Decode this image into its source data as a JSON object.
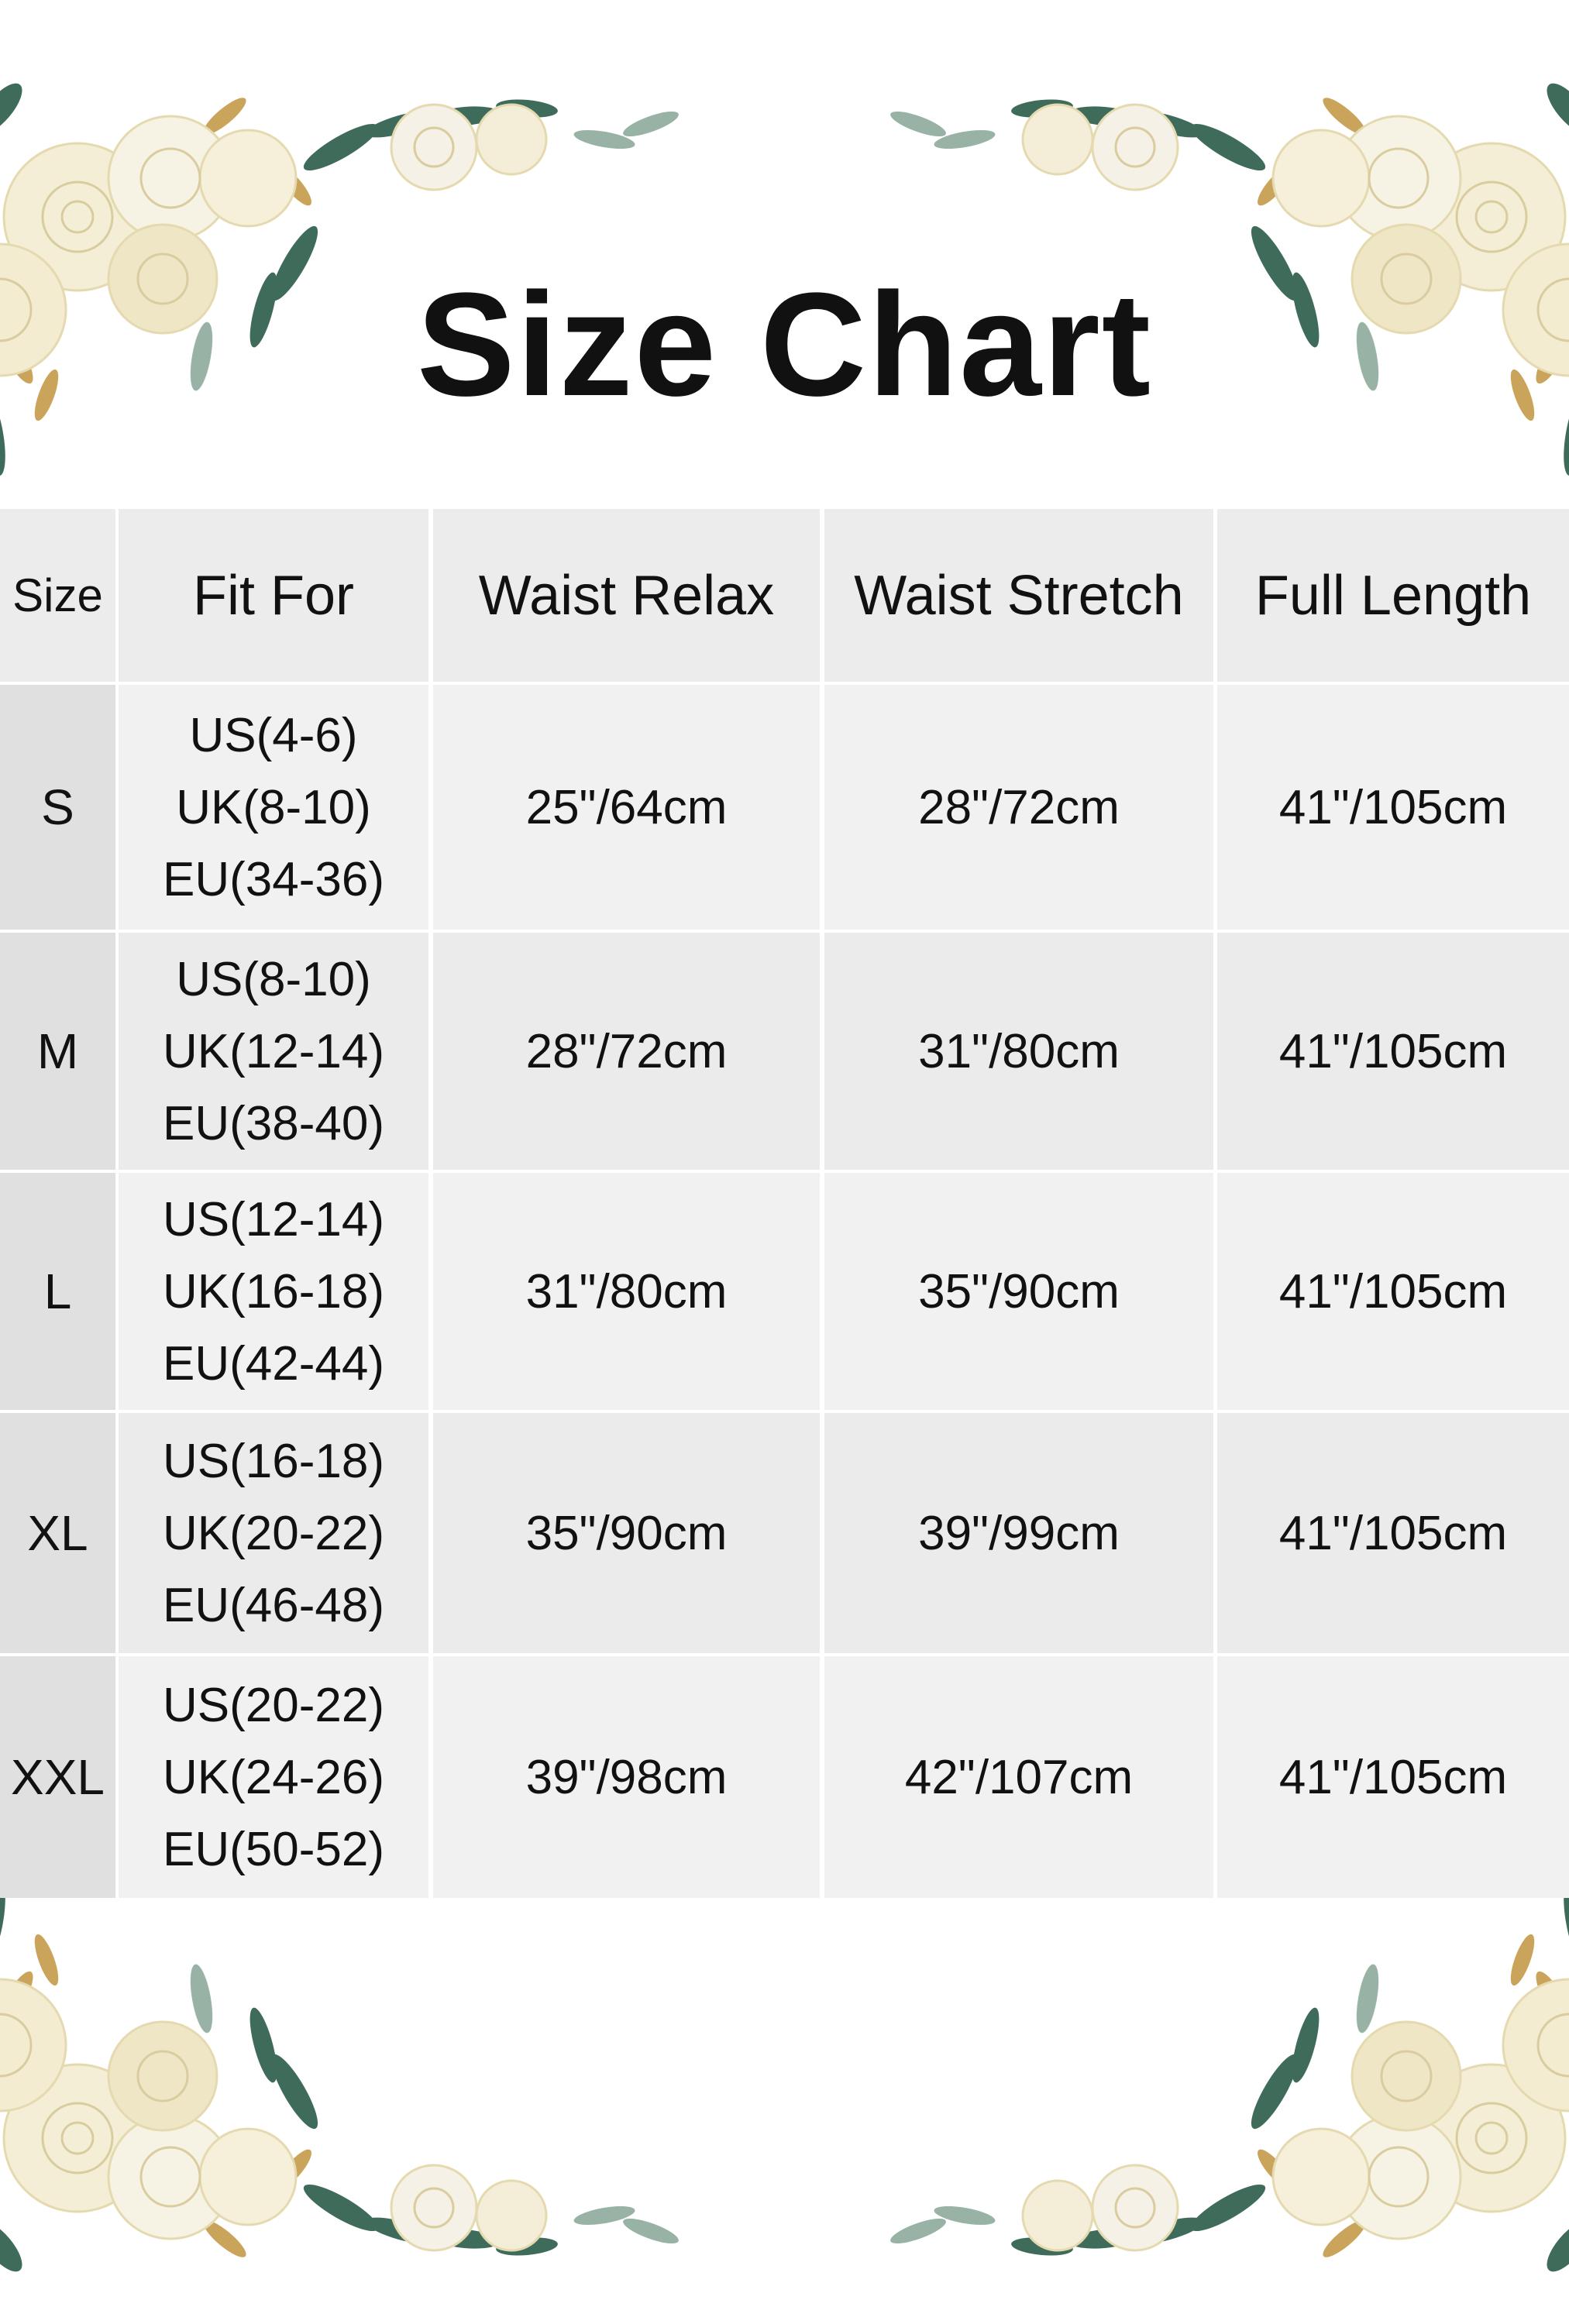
{
  "title": "Size Chart",
  "table": {
    "headers": [
      "Size",
      "Fit For",
      "Waist Relax",
      "Waist Stretch",
      "Full Length"
    ],
    "rows": [
      {
        "size": "S",
        "fit": [
          "US(4-6)",
          "UK(8-10)",
          "EU(34-36)"
        ],
        "waist_relax": "25\"/64cm",
        "waist_stretch": "28\"/72cm",
        "full_length": "41\"/105cm"
      },
      {
        "size": "M",
        "fit": [
          "US(8-10)",
          "UK(12-14)",
          "EU(38-40)"
        ],
        "waist_relax": "28\"/72cm",
        "waist_stretch": "31\"/80cm",
        "full_length": "41\"/105cm"
      },
      {
        "size": "L",
        "fit": [
          "US(12-14)",
          "UK(16-18)",
          "EU(42-44)"
        ],
        "waist_relax": "31\"/80cm",
        "waist_stretch": "35\"/90cm",
        "full_length": "41\"/105cm"
      },
      {
        "size": "XL",
        "fit": [
          "US(16-18)",
          "UK(20-22)",
          "EU(46-48)"
        ],
        "waist_relax": "35\"/90cm",
        "waist_stretch": "39\"/99cm",
        "full_length": "41\"/105cm"
      },
      {
        "size": "XXL",
        "fit": [
          "US(20-22)",
          "UK(24-26)",
          "EU(50-52)"
        ],
        "waist_relax": "39\"/98cm",
        "waist_stretch": "42\"/107cm",
        "full_length": "41\"/105cm"
      }
    ]
  },
  "colors": {
    "header_bg": "#ececec",
    "cell_bg": "#f1f1f1",
    "cell_alt_bg": "#ebebeb",
    "size_col_bg": "#e0e0e0",
    "rose": "#f3ecd2",
    "leaf": "#3f6b5a",
    "gold": "#c9a45a"
  }
}
